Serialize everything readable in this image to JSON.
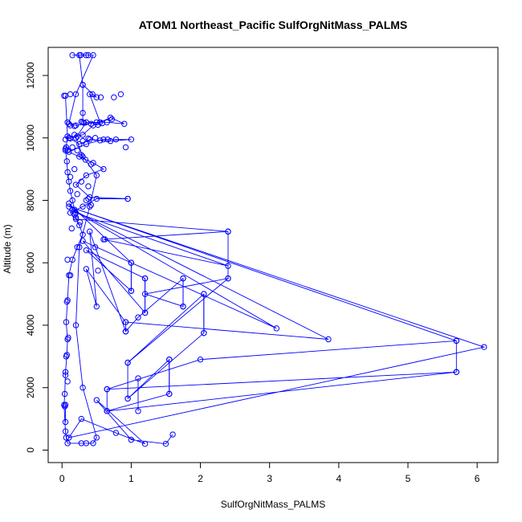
{
  "chart_data": {
    "type": "line",
    "title": "ATOM1 Northeast_Pacific SulfOrgNitMass_PALMS",
    "xlabel": "SulfOrgNitMass_PALMS",
    "ylabel": "Altitude (m)",
    "xlim": [
      -0.2,
      6.3
    ],
    "ylim": [
      -400,
      12900
    ],
    "x_ticks": [
      "0",
      "1",
      "2",
      "3",
      "4",
      "5",
      "6"
    ],
    "y_ticks": [
      "0",
      "2000",
      "4000",
      "6000",
      "8000",
      "10000",
      "12000"
    ],
    "grid": false,
    "legend": "none",
    "marker": "open-circle",
    "colors": {
      "series": "#0000ff",
      "axes": "#000000"
    },
    "series": [
      {
        "points": [
          [
            0.05,
            11350
          ],
          [
            0.08,
            10050
          ],
          [
            0.06,
            9700
          ],
          [
            0.05,
            9600
          ],
          [
            0.07,
            9250
          ],
          [
            0.08,
            8900
          ],
          [
            0.1,
            8600
          ],
          [
            0.12,
            8300
          ],
          [
            0.15,
            8000
          ],
          [
            0.18,
            7700
          ],
          [
            0.2,
            7450
          ],
          [
            0.25,
            7200
          ],
          [
            0.3,
            6900
          ],
          [
            0.22,
            6500
          ],
          [
            0.15,
            6100
          ],
          [
            0.1,
            5600
          ],
          [
            0.08,
            4800
          ],
          [
            0.06,
            4100
          ],
          [
            0.08,
            3550
          ],
          [
            0.07,
            3050
          ],
          [
            0.05,
            2500
          ],
          [
            0.04,
            1800
          ],
          [
            0.03,
            1450
          ],
          [
            0.05,
            600
          ],
          [
            0.06,
            400
          ],
          [
            0.08,
            220
          ],
          [
            0.28,
            220
          ],
          [
            0.35,
            220
          ],
          [
            0.45,
            220
          ],
          [
            0.5,
            400
          ],
          [
            0.3,
            2000
          ],
          [
            0.2,
            4000
          ],
          [
            0.25,
            6500
          ],
          [
            0.4,
            7800
          ],
          [
            0.5,
            8800
          ],
          [
            0.3,
            9400
          ],
          [
            0.2,
            10000
          ],
          [
            0.35,
            10500
          ],
          [
            0.55,
            10500
          ],
          [
            0.4,
            11400
          ],
          [
            0.5,
            11300
          ],
          [
            0.3,
            11700
          ],
          [
            0.25,
            12650
          ],
          [
            0.15,
            12650
          ],
          [
            0.35,
            12650
          ],
          [
            0.45,
            12650
          ],
          [
            0.2,
            11400
          ],
          [
            0.1,
            10450
          ],
          [
            0.2,
            10400
          ],
          [
            0.5,
            10500
          ],
          [
            0.65,
            10500
          ],
          [
            0.9,
            10450
          ],
          [
            0.7,
            10650
          ],
          [
            0.45,
            10400
          ],
          [
            0.3,
            10100
          ],
          [
            0.1,
            10000
          ],
          [
            0.25,
            9800
          ],
          [
            0.4,
            9950
          ],
          [
            0.7,
            9900
          ],
          [
            1.0,
            9950
          ],
          [
            0.6,
            9950
          ],
          [
            0.35,
            9800
          ],
          [
            0.1,
            9550
          ],
          [
            0.25,
            9400
          ],
          [
            0.45,
            9200
          ],
          [
            0.6,
            9000
          ],
          [
            0.35,
            8800
          ],
          [
            0.2,
            8500
          ],
          [
            0.4,
            8100
          ],
          [
            0.95,
            8050
          ],
          [
            0.5,
            8050
          ],
          [
            0.3,
            7800
          ],
          [
            0.12,
            7600
          ],
          [
            0.2,
            7400
          ],
          [
            2.4,
            7000
          ],
          [
            0.6,
            6750
          ],
          [
            2.4,
            5900
          ],
          [
            0.2,
            7600
          ],
          [
            0.1,
            7900
          ],
          [
            1.0,
            6000
          ],
          [
            1.0,
            5100
          ],
          [
            0.35,
            6400
          ],
          [
            1.2,
            5500
          ],
          [
            1.2,
            4400
          ],
          [
            0.3,
            6700
          ],
          [
            3.1,
            3900
          ],
          [
            0.15,
            7700
          ],
          [
            3.85,
            3550
          ],
          [
            0.92,
            4100
          ],
          [
            0.35,
            5800
          ],
          [
            0.5,
            4600
          ],
          [
            0.4,
            7000
          ],
          [
            0.92,
            3800
          ],
          [
            1.1,
            4250
          ],
          [
            1.75,
            5500
          ],
          [
            1.75,
            4600
          ],
          [
            1.2,
            5000
          ],
          [
            2.4,
            5500
          ],
          [
            0.95,
            2800
          ],
          [
            2.05,
            5000
          ],
          [
            2.05,
            3750
          ],
          [
            0.95,
            1650
          ],
          [
            1.55,
            2900
          ],
          [
            1.55,
            1800
          ],
          [
            0.65,
            1250
          ],
          [
            5.7,
            2500
          ],
          [
            0.65,
            1950
          ],
          [
            2.0,
            2900
          ],
          [
            5.7,
            3500
          ],
          [
            0.1,
            7800
          ],
          [
            6.1,
            3300
          ],
          [
            0.1,
            400
          ],
          [
            0.28,
            1000
          ],
          [
            0.78,
            550
          ],
          [
            1.2,
            200
          ],
          [
            0.5,
            1600
          ],
          [
            1.0,
            330
          ],
          [
            1.5,
            200
          ],
          [
            1.6,
            500
          ]
        ]
      }
    ],
    "vertical_pairs": [
      [
        [
          0.3,
          11700
        ],
        [
          0.3,
          10500
        ]
      ],
      [
        [
          1.0,
          6000
        ],
        [
          1.0,
          5100
        ]
      ],
      [
        [
          1.2,
          5500
        ],
        [
          1.2,
          4400
        ]
      ],
      [
        [
          1.75,
          5500
        ],
        [
          1.75,
          4600
        ]
      ],
      [
        [
          2.05,
          5000
        ],
        [
          2.05,
          3750
        ]
      ],
      [
        [
          2.4,
          7000
        ],
        [
          2.4,
          5500
        ]
      ],
      [
        [
          0.95,
          2800
        ],
        [
          0.95,
          1650
        ]
      ],
      [
        [
          1.55,
          2900
        ],
        [
          1.55,
          1800
        ]
      ],
      [
        [
          5.7,
          3500
        ],
        [
          5.7,
          2500
        ]
      ],
      [
        [
          0.92,
          4100
        ],
        [
          0.92,
          3800
        ]
      ],
      [
        [
          0.65,
          1950
        ],
        [
          0.65,
          1250
        ]
      ],
      [
        [
          1.1,
          2300
        ],
        [
          1.1,
          1250
        ]
      ],
      [
        [
          0.05,
          1450
        ],
        [
          0.05,
          900
        ]
      ]
    ],
    "extra_points": [
      [
        0.03,
        11350
      ],
      [
        0.08,
        10500
      ],
      [
        0.12,
        10400
      ],
      [
        0.18,
        10380
      ],
      [
        0.28,
        10520
      ],
      [
        0.32,
        10480
      ],
      [
        0.42,
        10450
      ],
      [
        0.52,
        10420
      ],
      [
        0.58,
        10470
      ],
      [
        0.05,
        9950
      ],
      [
        0.12,
        9980
      ],
      [
        0.18,
        10100
      ],
      [
        0.22,
        10050
      ],
      [
        0.3,
        9900
      ],
      [
        0.38,
        9980
      ],
      [
        0.48,
        10000
      ],
      [
        0.55,
        9920
      ],
      [
        0.66,
        9950
      ],
      [
        0.78,
        9950
      ],
      [
        0.05,
        9650
      ],
      [
        0.08,
        9600
      ],
      [
        0.15,
        9700
      ],
      [
        0.22,
        9600
      ],
      [
        0.28,
        9450
      ],
      [
        0.34,
        9300
      ],
      [
        0.42,
        9150
      ],
      [
        0.18,
        9000
      ],
      [
        0.12,
        8750
      ],
      [
        0.28,
        8600
      ],
      [
        0.38,
        8450
      ],
      [
        0.22,
        8200
      ],
      [
        0.35,
        8000
      ],
      [
        0.42,
        7850
      ],
      [
        0.18,
        7550
      ],
      [
        0.26,
        7300
      ],
      [
        0.14,
        7100
      ],
      [
        0.08,
        6100
      ],
      [
        0.12,
        5600
      ],
      [
        0.07,
        4750
      ],
      [
        0.09,
        3600
      ],
      [
        0.06,
        3000
      ],
      [
        0.05,
        2400
      ],
      [
        0.08,
        2200
      ],
      [
        0.04,
        1400
      ],
      [
        0.38,
        12650
      ],
      [
        0.27,
        12650
      ],
      [
        0.12,
        11400
      ],
      [
        0.44,
        11400
      ],
      [
        0.56,
        11300
      ],
      [
        0.85,
        11400
      ],
      [
        0.75,
        11300
      ],
      [
        0.72,
        10600
      ],
      [
        0.92,
        9700
      ],
      [
        0.95,
        8050
      ],
      [
        0.3,
        10800
      ],
      [
        0.38,
        8050
      ],
      [
        0.48,
        6500
      ],
      [
        0.62,
        6750
      ],
      [
        0.52,
        5750
      ]
    ]
  }
}
